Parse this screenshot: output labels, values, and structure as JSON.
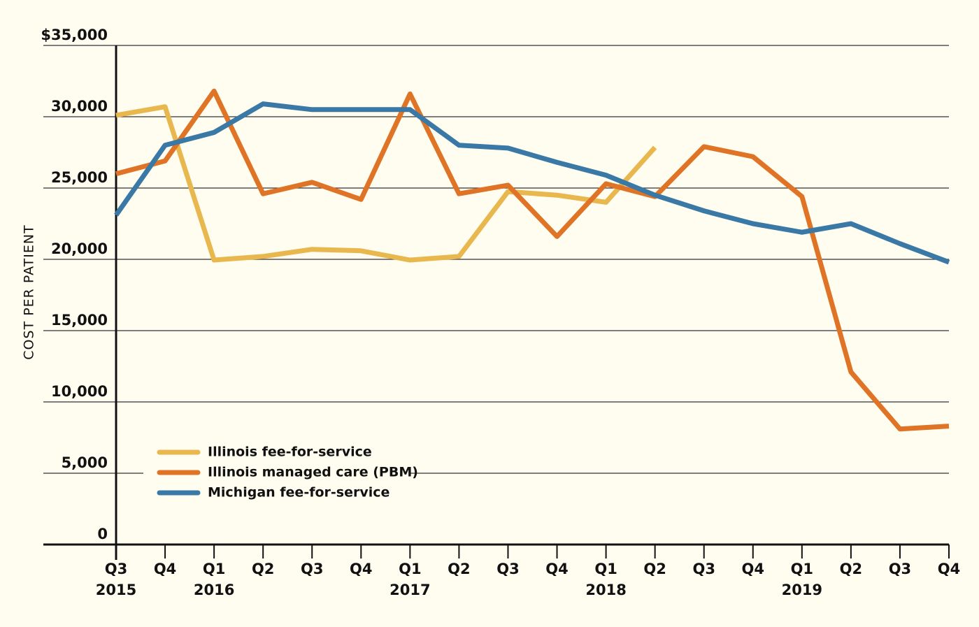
{
  "chart_data": {
    "type": "line",
    "y_label": "COST PER PATIENT",
    "categories": [
      "Q3",
      "Q4",
      "Q1",
      "Q2",
      "Q3",
      "Q4",
      "Q1",
      "Q2",
      "Q3",
      "Q4",
      "Q1",
      "Q2",
      "Q3",
      "Q4",
      "Q1",
      "Q2",
      "Q3",
      "Q4"
    ],
    "years": [
      "2015",
      null,
      "2016",
      null,
      null,
      null,
      "2017",
      null,
      null,
      null,
      "2018",
      null,
      null,
      null,
      "2019",
      null,
      null,
      null
    ],
    "series": [
      {
        "name": "Illinois fee-for-service",
        "color": "#e8b84f",
        "values": [
          30100,
          30700,
          19950,
          20200,
          20700,
          20600,
          19950,
          20200,
          24750,
          24500,
          24000,
          27850,
          null,
          null,
          null,
          null,
          null,
          null
        ]
      },
      {
        "name": "Illinois managed care (PBM)",
        "color": "#e07426",
        "values": [
          26000,
          26900,
          31800,
          24600,
          25400,
          24200,
          31600,
          24600,
          25200,
          21600,
          25300,
          24400,
          27900,
          27200,
          24400,
          12100,
          8100,
          8300
        ]
      },
      {
        "name": "Michigan fee-for-service",
        "color": "#3a78a5",
        "values": [
          23100,
          28000,
          28900,
          30900,
          30500,
          30500,
          30500,
          28000,
          27800,
          26800,
          25900,
          24500,
          23400,
          22500,
          21900,
          22500,
          21100,
          19800
        ]
      }
    ],
    "ylim": [
      0,
      35000
    ],
    "yticks": [
      0,
      {
        "value": 5000,
        "label": "5,000"
      },
      {
        "value": 10000,
        "label": "10,000"
      },
      {
        "value": 15000,
        "label": "15,000"
      },
      {
        "value": 20000,
        "label": "20,000"
      },
      {
        "value": 25000,
        "label": "25,000"
      },
      {
        "value": 30000,
        "label": "30,000"
      },
      {
        "value": 35000,
        "label": "$35,000"
      }
    ],
    "grid": true,
    "legend": "lower left"
  }
}
